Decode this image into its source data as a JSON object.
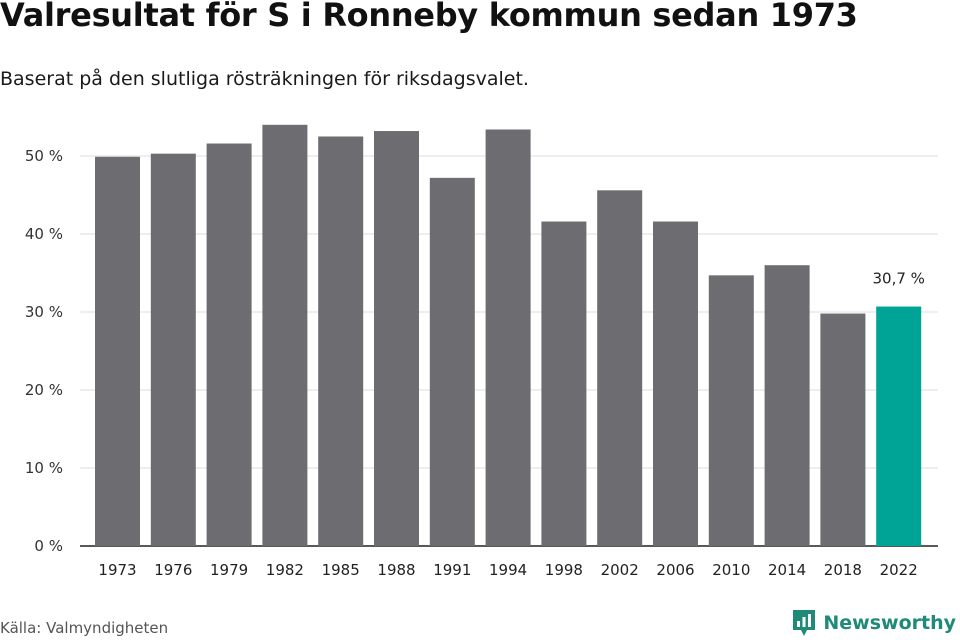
{
  "chart_data": {
    "type": "bar",
    "title": "Valresultat för S i Ronneby kommun sedan 1973",
    "subtitle": "Baserat på den slutliga rösträkningen för riksdagsvalet.",
    "xlabel": "",
    "ylabel": "",
    "categories": [
      "1973",
      "1976",
      "1979",
      "1982",
      "1985",
      "1988",
      "1991",
      "1994",
      "1998",
      "2002",
      "2006",
      "2010",
      "2014",
      "2018",
      "2022"
    ],
    "values": [
      49.9,
      50.3,
      51.6,
      54.0,
      52.5,
      53.2,
      47.2,
      53.4,
      41.6,
      45.6,
      41.6,
      34.7,
      36.0,
      29.8,
      30.7
    ],
    "ylim": [
      0,
      55
    ],
    "yticks": [
      0,
      10,
      20,
      30,
      40,
      50
    ],
    "ytick_labels": [
      "0 %",
      "10 %",
      "20 %",
      "30 %",
      "40 %",
      "50 %"
    ],
    "grid": true,
    "highlight_index": 14,
    "data_labels": [
      {
        "index": 14,
        "text": "30,7 %"
      }
    ],
    "colors": {
      "bar": "#6d6c71",
      "highlight": "#00a497",
      "grid": "#dddddd",
      "axis": "#222222"
    }
  },
  "footer": {
    "source": "Källa: Valmyndigheten",
    "brand": "Newsworthy",
    "brand_color": "#1f8a78",
    "brand_icon": "newsworthy-logo-icon"
  }
}
